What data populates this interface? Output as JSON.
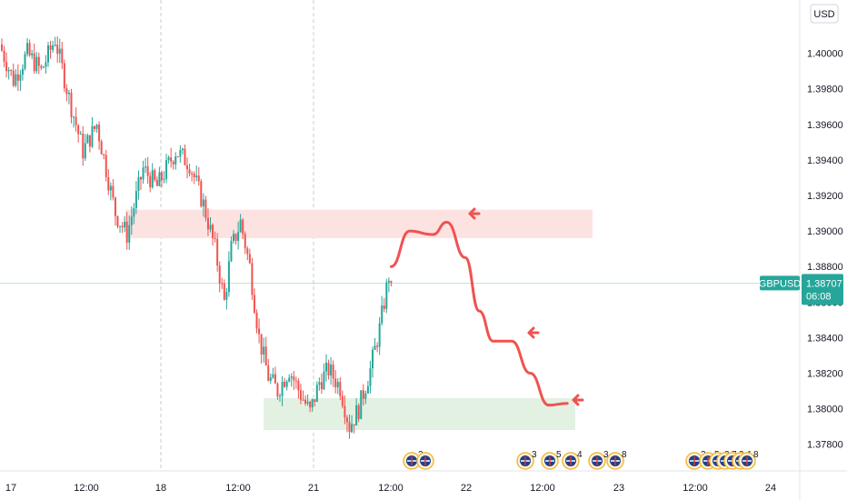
{
  "chart_data": {
    "type": "candlestick",
    "symbol": "GBPUSD",
    "currency": "USD",
    "last_price": "1.38707",
    "countdown": "06:08",
    "colors": {
      "up": "#26a69a",
      "down": "#ef5350",
      "badge": "#26a69a",
      "projection": "#ef5350",
      "supply_zone": "#fde2e2",
      "demand_zone": "#e3f1e3"
    },
    "ylim": [
      1.3765,
      1.403
    ],
    "y_ticks": [
      "1.40000",
      "1.39800",
      "1.39600",
      "1.39400",
      "1.39200",
      "1.39000",
      "1.38800",
      "1.38600",
      "1.38400",
      "1.38200",
      "1.38000",
      "1.37800"
    ],
    "x_ticks": [
      "17",
      "12:00",
      "18",
      "12:00",
      "21",
      "12:00",
      "22",
      "12:00",
      "23",
      "12:00",
      "24"
    ],
    "x_session_dividers": [
      "18",
      "21"
    ],
    "price_path_keypoints": [
      {
        "t": 0,
        "p": 1.4005
      },
      {
        "t": 6,
        "p": 1.3985
      },
      {
        "t": 12,
        "p": 1.4
      },
      {
        "t": 18,
        "p": 1.399
      },
      {
        "t": 24,
        "p": 1.4008
      },
      {
        "t": 30,
        "p": 1.3975
      },
      {
        "t": 36,
        "p": 1.3945
      },
      {
        "t": 42,
        "p": 1.396
      },
      {
        "t": 50,
        "p": 1.391
      },
      {
        "t": 55,
        "p": 1.3898
      },
      {
        "t": 62,
        "p": 1.3935
      },
      {
        "t": 68,
        "p": 1.3925
      },
      {
        "t": 76,
        "p": 1.3945
      },
      {
        "t": 82,
        "p": 1.3938
      },
      {
        "t": 88,
        "p": 1.3915
      },
      {
        "t": 93,
        "p": 1.389
      },
      {
        "t": 97,
        "p": 1.386
      },
      {
        "t": 100,
        "p": 1.389
      },
      {
        "t": 104,
        "p": 1.3905
      },
      {
        "t": 108,
        "p": 1.388
      },
      {
        "t": 112,
        "p": 1.384
      },
      {
        "t": 116,
        "p": 1.3818
      },
      {
        "t": 120,
        "p": 1.381
      },
      {
        "t": 125,
        "p": 1.3822
      },
      {
        "t": 130,
        "p": 1.3808
      },
      {
        "t": 134,
        "p": 1.3798
      },
      {
        "t": 138,
        "p": 1.3815
      },
      {
        "t": 142,
        "p": 1.3822
      },
      {
        "t": 147,
        "p": 1.3812
      },
      {
        "t": 151,
        "p": 1.379
      },
      {
        "t": 155,
        "p": 1.38
      },
      {
        "t": 160,
        "p": 1.3822
      },
      {
        "t": 164,
        "p": 1.3845
      },
      {
        "t": 168,
        "p": 1.3875
      }
    ],
    "zones": [
      {
        "name": "supply",
        "price_top": 1.3912,
        "price_bottom": 1.3896
      },
      {
        "name": "demand",
        "price_top": 1.3806,
        "price_bottom": 1.3788
      }
    ],
    "projection_path": [
      {
        "t": 168,
        "p": 1.388
      },
      {
        "t": 176,
        "p": 1.39
      },
      {
        "t": 186,
        "p": 1.3898
      },
      {
        "t": 192,
        "p": 1.3905
      },
      {
        "t": 200,
        "p": 1.3885
      },
      {
        "t": 206,
        "p": 1.3855
      },
      {
        "t": 212,
        "p": 1.3838
      },
      {
        "t": 220,
        "p": 1.3838
      },
      {
        "t": 228,
        "p": 1.382
      },
      {
        "t": 236,
        "p": 1.3802
      },
      {
        "t": 244,
        "p": 1.3803
      }
    ],
    "events_group_1": [
      "3"
    ],
    "events_group_2": [
      "3",
      "5",
      "4",
      "3",
      "8"
    ],
    "events_group_3": [
      "3",
      "5",
      "2",
      "7",
      "3",
      "1",
      "8"
    ]
  }
}
